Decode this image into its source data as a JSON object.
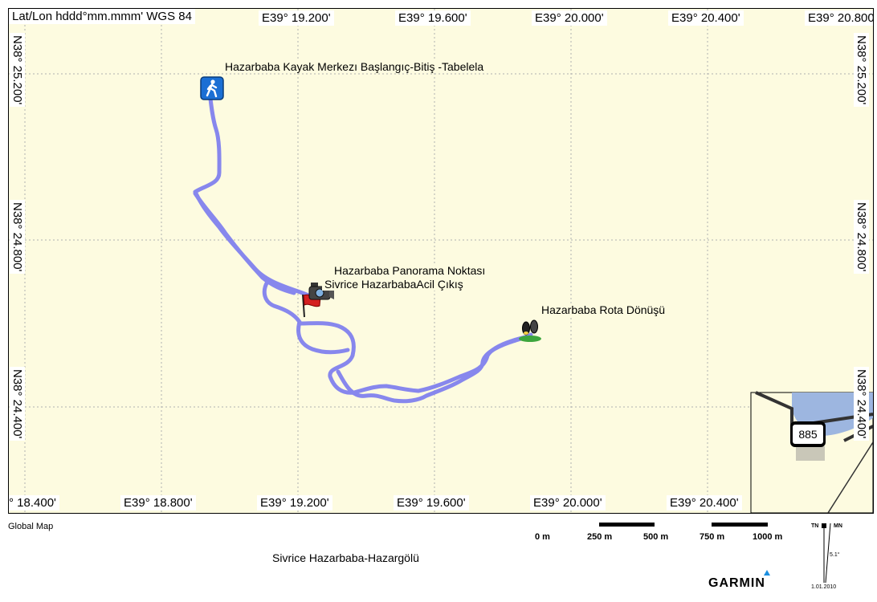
{
  "map": {
    "coord_format": "Lat/Lon hddd°mm.mmm' WGS 84",
    "top_ticks": [
      "E39° 19.200'",
      "E39° 19.600'",
      "E39° 20.000'",
      "E39° 20.400'",
      "E39° 20.800'"
    ],
    "bottom_ticks": [
      "° 18.400'",
      "E39° 18.800'",
      "E39° 19.200'",
      "E39° 19.600'",
      "E39° 20.000'",
      "E39° 20.400'"
    ],
    "left_ticks": [
      "N38° 25.200'",
      "N38° 24.800'",
      "N38° 24.400'"
    ],
    "right_ticks": [
      "N38° 25.200'",
      "N38° 24.800'",
      "N38° 24.400'"
    ],
    "track_color": "#7878f0",
    "waypoints": {
      "start": "Hazarbaba Kayak Merkezı Başlangıç-Bitiş -Tabelela",
      "panorama": "Hazarbaba Panorama Noktası",
      "exit": "Sivrice HazarbabaAcil Çıkış",
      "turn": "Hazarbaba Rota Dönüşü"
    },
    "inset": {
      "road_number": "885"
    }
  },
  "footer": {
    "source": "Global Map",
    "title": "Sivrice Hazarbaba-Hazargölü",
    "brand": "GARMIN",
    "scale_labels": [
      "0 m",
      "250 m",
      "500 m",
      "750 m",
      "1000 m"
    ],
    "north": {
      "tn": "TN",
      "mn": "MN",
      "declination": "5.1°",
      "date": "1.01.2010"
    }
  }
}
